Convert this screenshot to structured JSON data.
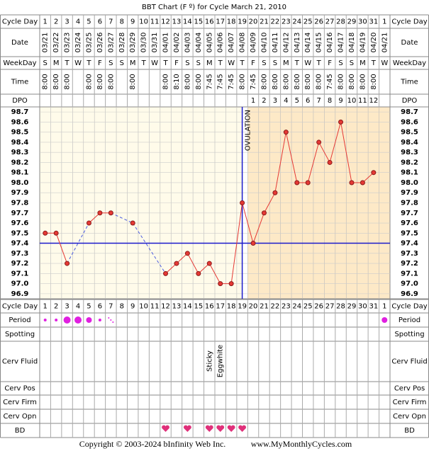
{
  "chart_data": {
    "type": "line",
    "title": "BBT Chart (F º) for Cycle March 21, 2010",
    "row_labels": {
      "cycle_day": "Cycle Day",
      "date": "Date",
      "weekday": "WeekDay",
      "time": "Time",
      "dpo": "DPO",
      "period": "Period",
      "spotting": "Spotting",
      "cerv_fluid": "Cerv Fluid",
      "cerv_pos": "Cerv Pos",
      "cerv_firm": "Cerv Firm",
      "cerv_opn": "Cerv Opn",
      "bd": "BD"
    },
    "cycle_days": [
      1,
      2,
      3,
      4,
      5,
      6,
      7,
      8,
      9,
      10,
      11,
      12,
      13,
      14,
      15,
      16,
      17,
      18,
      19,
      20,
      21,
      22,
      23,
      24,
      25,
      26,
      27,
      28,
      29,
      30,
      31,
      1
    ],
    "dates": [
      "03/21",
      "03/22",
      "03/23",
      "03/24",
      "03/25",
      "03/26",
      "03/27",
      "03/28",
      "03/29",
      "03/30",
      "03/31",
      "04/01",
      "04/02",
      "04/03",
      "04/04",
      "04/05",
      "04/06",
      "04/07",
      "04/08",
      "04/09",
      "04/10",
      "04/11",
      "04/12",
      "04/13",
      "04/14",
      "04/15",
      "04/16",
      "04/17",
      "04/18",
      "04/19",
      "04/20",
      "04/21"
    ],
    "weekdays": [
      "S",
      "M",
      "T",
      "W",
      "T",
      "F",
      "S",
      "S",
      "M",
      "T",
      "W",
      "T",
      "F",
      "S",
      "S",
      "M",
      "T",
      "W",
      "T",
      "F",
      "S",
      "S",
      "M",
      "T",
      "W",
      "T",
      "F",
      "S",
      "S",
      "M",
      "T",
      "W"
    ],
    "times": [
      "8:00",
      "8:00",
      "8:00",
      null,
      "8:00",
      "8:00",
      "8:00",
      null,
      "8:00",
      null,
      null,
      "8:00",
      "8:10",
      "8:00",
      "8:00",
      "7:45",
      "7:45",
      "7:45",
      "8:00",
      "7:45",
      "8:00",
      "8:00",
      "8:00",
      "8:00",
      "8:00",
      "8:00",
      "7:45",
      "8:00",
      "8:00",
      "8:00",
      "8:00",
      null
    ],
    "dpo": [
      null,
      null,
      null,
      null,
      null,
      null,
      null,
      null,
      null,
      null,
      null,
      null,
      null,
      null,
      null,
      null,
      null,
      null,
      null,
      1,
      2,
      3,
      4,
      5,
      6,
      7,
      8,
      9,
      10,
      11,
      12,
      null
    ],
    "series": [
      {
        "name": "BBT",
        "color": "#e53935",
        "values": [
          97.5,
          97.5,
          97.2,
          null,
          97.6,
          97.7,
          97.7,
          null,
          97.6,
          null,
          null,
          97.1,
          97.2,
          97.3,
          97.1,
          97.2,
          97.0,
          97.0,
          97.8,
          97.4,
          97.7,
          97.9,
          98.5,
          98.0,
          98.0,
          98.4,
          98.2,
          98.6,
          98.0,
          98.0,
          98.1,
          null
        ]
      }
    ],
    "ylim": [
      96.85,
      98.75
    ],
    "yticks": [
      {
        "value": 96.9,
        "label": "96.9"
      },
      {
        "value": 97.0,
        "label": "97.0"
      },
      97.1,
      97.2,
      97.3,
      97.4,
      97.5,
      97.6,
      97.7,
      97.8,
      97.9,
      {
        "value": 98.0,
        "label": "98.0"
      },
      98.1,
      98.2,
      98.3,
      98.4,
      98.5,
      98.6,
      98.7
    ],
    "coverline": 97.4,
    "ovulation_day": 19,
    "ovulation_label": "OVULATION",
    "cerv_fluid": [
      null,
      null,
      null,
      null,
      null,
      null,
      null,
      null,
      null,
      null,
      null,
      null,
      null,
      null,
      null,
      "Sticky",
      "Eggwhite",
      null,
      null,
      null,
      null,
      null,
      null,
      null,
      null,
      null,
      null,
      null,
      null,
      null,
      null,
      null
    ],
    "copyright": "Copyright © 2003-2024 bInfinity Web Inc.",
    "site": "www.MyMonthlyCycles.com"
  }
}
